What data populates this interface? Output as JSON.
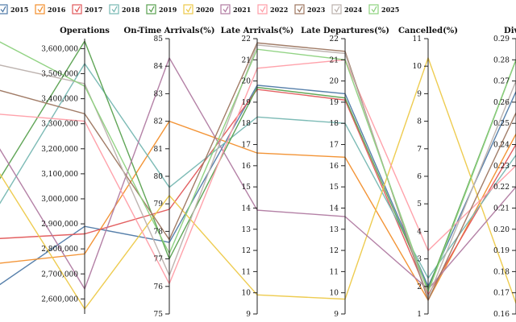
{
  "chart_data": {
    "type": "parallel-coordinates",
    "title": "",
    "axes": [
      {
        "key": "year",
        "label": "Year",
        "display_label": "ar",
        "range": [
          2014,
          2025
        ],
        "ticks": []
      },
      {
        "key": "operations",
        "label": "Operations",
        "range": [
          2540000,
          3640000
        ],
        "ticks": [
          2600000,
          2700000,
          2800000,
          2900000,
          3000000,
          3100000,
          3200000,
          3300000,
          3400000,
          3500000,
          3600000
        ],
        "tick_labels": [
          "2,600,000",
          "2,700,000",
          "2,800,000",
          "2,900,000",
          "3,000,000",
          "3,100,000",
          "3,200,000",
          "3,300,000",
          "3,400,000",
          "3,500,000",
          "3,600,000"
        ]
      },
      {
        "key": "ontime",
        "label": "On-Time Arrivals(%)",
        "range": [
          75,
          85
        ],
        "ticks": [
          75,
          76,
          77,
          78,
          79,
          80,
          81,
          82,
          83,
          84,
          85
        ],
        "tick_labels": [
          "75",
          "76",
          "77",
          "78",
          "79",
          "80",
          "81",
          "82",
          "83",
          "84",
          "85"
        ]
      },
      {
        "key": "late_arr",
        "label": "Late Arrivals(%)",
        "range": [
          9,
          22
        ],
        "ticks": [
          9,
          10,
          11,
          12,
          13,
          14,
          15,
          16,
          17,
          18,
          19,
          20,
          21,
          22
        ],
        "tick_labels": [
          "9",
          "10",
          "11",
          "12",
          "13",
          "14",
          "15",
          "16",
          "17",
          "18",
          "19",
          "20",
          "21",
          "22"
        ]
      },
      {
        "key": "late_dep",
        "label": "Late Departures(%)",
        "range": [
          9,
          22
        ],
        "ticks": [
          9,
          10,
          11,
          12,
          13,
          14,
          15,
          16,
          17,
          18,
          19,
          20,
          21,
          22
        ],
        "tick_labels": [
          "9",
          "10",
          "11",
          "12",
          "13",
          "14",
          "15",
          "16",
          "17",
          "18",
          "19",
          "20",
          "21",
          "22"
        ]
      },
      {
        "key": "cancelled",
        "label": "Cancelled(%)",
        "range": [
          1,
          11
        ],
        "ticks": [
          1,
          2,
          3,
          4,
          5,
          6,
          7,
          8,
          9,
          10,
          11
        ],
        "tick_labels": [
          "1",
          "2",
          "3",
          "4",
          "5",
          "6",
          "7",
          "8",
          "9",
          "10",
          "11"
        ]
      },
      {
        "key": "diverted",
        "label": "Diverted(%)",
        "display_label": "Diver",
        "range": [
          0.16,
          0.29
        ],
        "ticks": [
          0.16,
          0.17,
          0.18,
          0.19,
          0.2,
          0.21,
          0.22,
          0.23,
          0.24,
          0.25,
          0.26,
          0.27,
          0.28,
          0.29
        ],
        "tick_labels": [
          "0.16",
          "0.17",
          "0.18",
          "0.19",
          "0.20",
          "0.21",
          "0.22",
          "0.23",
          "0.24",
          "0.25",
          "0.26",
          "0.27",
          "0.28",
          "0.29"
        ]
      }
    ],
    "series": [
      {
        "name": "2015",
        "color": "#4e79a7",
        "values": [
          2015,
          2890000,
          77.6,
          19.8,
          19.4,
          2.0,
          0.265
        ]
      },
      {
        "name": "2016",
        "color": "#f28e2b",
        "values": [
          2016,
          2780000,
          82.0,
          16.6,
          16.4,
          1.5,
          0.245
        ]
      },
      {
        "name": "2017",
        "color": "#e15759",
        "values": [
          2017,
          2860000,
          78.8,
          19.6,
          19.1,
          1.7,
          0.24
        ]
      },
      {
        "name": "2018",
        "color": "#76b7b2",
        "values": [
          2018,
          3540000,
          79.6,
          18.3,
          18.0,
          2.3,
          0.235
        ]
      },
      {
        "name": "2019",
        "color": "#59a14f",
        "values": [
          2019,
          3630000,
          77.0,
          19.7,
          19.2,
          1.9,
          0.28
        ]
      },
      {
        "name": "2020",
        "color": "#edc948",
        "values": [
          2020,
          2560000,
          79.3,
          9.9,
          9.7,
          10.3,
          0.165
        ]
      },
      {
        "name": "2021",
        "color": "#b07aa1",
        "values": [
          2021,
          2640000,
          84.3,
          13.9,
          13.6,
          1.9,
          0.22
        ]
      },
      {
        "name": "2022",
        "color": "#ff9da7",
        "values": [
          2022,
          3310000,
          76.1,
          20.6,
          21.0,
          3.3,
          0.23
        ]
      },
      {
        "name": "2023",
        "color": "#9c755f",
        "values": [
          2023,
          3340000,
          77.7,
          21.8,
          21.4,
          1.5,
          0.255
        ]
      },
      {
        "name": "2024",
        "color": "#bab0ac",
        "values": [
          2024,
          3460000,
          76.4,
          21.7,
          21.3,
          1.6,
          0.27
        ]
      },
      {
        "name": "2025",
        "color": "#8cd17d",
        "values": [
          2025,
          3450000,
          77.2,
          21.5,
          21.0,
          1.8,
          0.28
        ]
      }
    ],
    "legend": {
      "placement": "top",
      "labels": [
        "2015",
        "2016",
        "2017",
        "2018",
        "2019",
        "2020",
        "2021",
        "2022",
        "2023",
        "2024",
        "2025"
      ]
    }
  }
}
